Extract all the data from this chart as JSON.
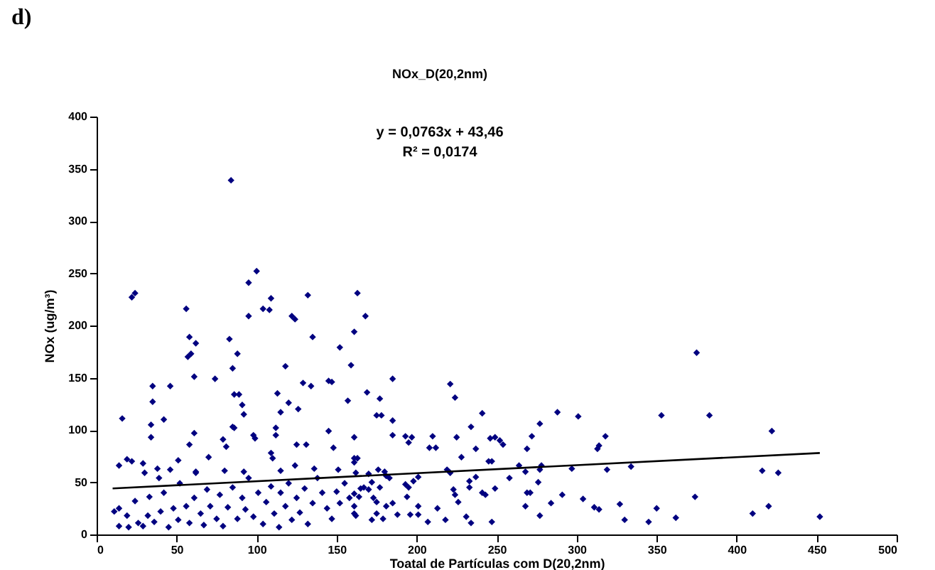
{
  "chart_data": {
    "type": "scatter",
    "title": "NOx_D(20,2nm)",
    "xlabel": "Toatal de Partículas com D(20,2nm)",
    "ylabel": "NOx (ug/m³)",
    "annotations": [
      "d)",
      "y = 0,0763x + 43,46",
      "R² = 0,0174"
    ],
    "xlim": [
      0,
      500
    ],
    "ylim": [
      0,
      400
    ],
    "xticks": [
      0,
      50,
      100,
      150,
      200,
      250,
      300,
      350,
      400,
      450,
      500
    ],
    "yticks": [
      0,
      50,
      100,
      150,
      200,
      250,
      300,
      350,
      400
    ],
    "grid": false,
    "series": [
      {
        "type": "scatter",
        "marker": "diamond",
        "color": "#000080",
        "x": [
          84,
          22,
          24,
          56,
          100,
          95,
          104,
          108,
          109,
          95,
          122,
          124,
          132,
          58,
          57,
          59,
          62,
          83,
          85,
          88,
          86,
          89,
          74,
          61,
          35,
          46,
          35,
          34,
          42,
          34,
          16,
          91,
          92,
          85,
          86,
          61,
          58,
          79,
          81,
          98,
          99,
          113,
          115,
          112,
          112,
          118,
          120,
          126,
          129,
          134,
          135,
          125,
          131,
          109,
          110,
          145,
          147,
          145,
          148,
          152,
          157,
          159,
          161,
          163,
          161,
          161,
          14,
          19,
          22,
          29,
          51,
          70,
          62,
          46,
          38,
          168,
          169,
          177,
          185,
          175,
          178,
          185,
          185,
          193,
          197,
          195,
          221,
          224,
          241,
          234,
          225,
          210,
          208,
          212,
          228,
          237,
          246,
          249,
          252,
          254,
          245,
          247,
          269,
          272,
          277,
          288,
          301,
          313,
          314,
          318,
          319,
          334,
          297,
          375,
          353,
          383,
          422,
          416,
          426,
          277,
          278,
          264,
          268,
          258,
          276,
          249,
          237,
          233,
          233,
          241,
          243,
          223,
          224,
          226,
          219,
          221,
          201,
          198,
          193,
          195,
          194,
          201,
          196,
          201,
          213,
          218,
          231,
          234,
          247,
          207,
          268,
          269,
          271,
          277,
          284,
          291,
          304,
          311,
          314,
          327,
          330,
          345,
          350,
          362,
          374,
          410,
          420,
          452,
          172,
          179,
          188,
          175,
          181,
          185,
          173,
          175,
          170,
          167,
          177,
          172,
          181,
          183,
          176,
          180,
          163,
          161,
          170,
          161,
          164,
          161,
          162,
          11,
          14,
          14,
          19,
          20,
          24,
          26,
          29,
          32,
          33,
          36,
          40,
          42,
          45,
          48,
          51,
          52,
          56,
          58,
          61,
          65,
          67,
          69,
          71,
          75,
          77,
          79,
          82,
          85,
          88,
          91,
          93,
          95,
          98,
          101,
          104,
          106,
          109,
          111,
          114,
          115,
          118,
          120,
          122,
          125,
          127,
          130,
          132,
          135,
          138,
          141,
          144,
          147,
          150,
          152,
          155,
          158,
          161,
          165,
          30,
          39,
          62,
          80,
          92,
          115,
          124,
          136,
          151,
          162
        ],
        "values": [
          339,
          227,
          231,
          216,
          252,
          241,
          216,
          215,
          226,
          209,
          209,
          206,
          229,
          189,
          170,
          173,
          183,
          187,
          159,
          173,
          134,
          134,
          149,
          151,
          142,
          142,
          127,
          105,
          110,
          93,
          111,
          124,
          115,
          103,
          102,
          97,
          86,
          91,
          84,
          95,
          92,
          135,
          117,
          102,
          95,
          161,
          126,
          120,
          145,
          142,
          189,
          86,
          86,
          78,
          73,
          147,
          146,
          99,
          83,
          179,
          128,
          162,
          194,
          231,
          93,
          73,
          66,
          72,
          70,
          68,
          71,
          74,
          60,
          62,
          63,
          209,
          136,
          130,
          149,
          114,
          114,
          109,
          95,
          94,
          93,
          88,
          144,
          131,
          116,
          103,
          93,
          94,
          83,
          83,
          74,
          82,
          92,
          93,
          90,
          86,
          70,
          70,
          82,
          94,
          106,
          117,
          113,
          82,
          85,
          94,
          62,
          65,
          63,
          174,
          114,
          114,
          99,
          61,
          59,
          62,
          66,
          66,
          60,
          54,
          50,
          44,
          55,
          51,
          45,
          40,
          38,
          43,
          38,
          31,
          62,
          59,
          55,
          51,
          48,
          45,
          36,
          27,
          19,
          19,
          25,
          14,
          17,
          11,
          12,
          12,
          27,
          40,
          40,
          18,
          30,
          38,
          34,
          26,
          24,
          29,
          14,
          12,
          25,
          16,
          36,
          20,
          27,
          17,
          14,
          15,
          19,
          20,
          27,
          30,
          35,
          31,
          43,
          45,
          45,
          50,
          56,
          54,
          62,
          60,
          73,
          69,
          58,
          39,
          36,
          27,
          18,
          22,
          8,
          25,
          18,
          7,
          32,
          11,
          8,
          18,
          36,
          12,
          22,
          40,
          7,
          25,
          14,
          49,
          27,
          11,
          35,
          20,
          9,
          43,
          27,
          15,
          38,
          8,
          26,
          45,
          15,
          35,
          24,
          54,
          17,
          40,
          10,
          31,
          46,
          20,
          7,
          40,
          27,
          49,
          14,
          35,
          21,
          44,
          10,
          30,
          54,
          40,
          25,
          15,
          41,
          30,
          49,
          35,
          20,
          44,
          59,
          54,
          59,
          61,
          60,
          61,
          66,
          63,
          62,
          59
        ]
      },
      {
        "type": "line",
        "color": "#000000",
        "x": [
          10,
          452
        ],
        "values": [
          44,
          78
        ]
      }
    ]
  }
}
